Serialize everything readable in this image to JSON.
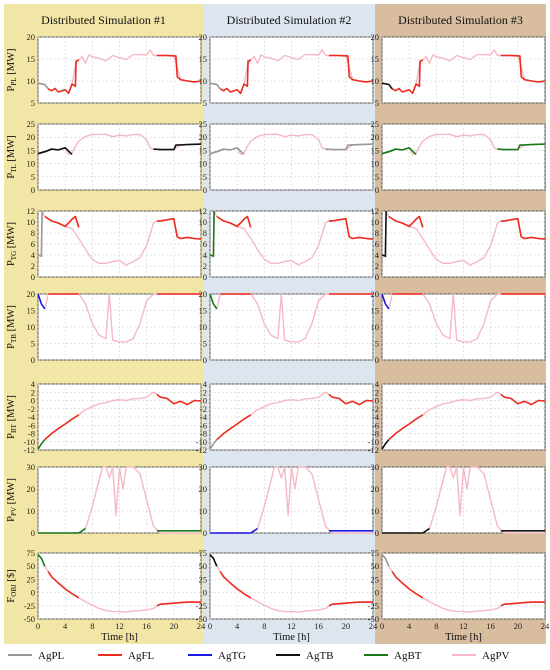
{
  "columns": [
    {
      "title": "Distributed Simulation #1",
      "bg": "#f2e6a6"
    },
    {
      "title": "Distributed Simulation #2",
      "bg": "#dde6ef"
    },
    {
      "title": "Distributed Simulation #3",
      "bg": "#d8bd9f"
    }
  ],
  "xlabel": "Time [h]",
  "xticks": [
    0,
    4,
    8,
    12,
    16,
    20,
    24
  ],
  "legend": [
    {
      "label": "AgPL",
      "color": "#999999"
    },
    {
      "label": "AgFL",
      "color": "#ee2b1e"
    },
    {
      "label": "AgTG",
      "color": "#1a1ae6"
    },
    {
      "label": "AgTB",
      "color": "#111111"
    },
    {
      "label": "AgBT",
      "color": "#1a7a1a"
    },
    {
      "label": "AgPV",
      "color": "#f5b8c4"
    }
  ],
  "chart_data": {
    "type": "line",
    "rows": [
      {
        "ylabel": "P_PL [MW]",
        "ylim": [
          5,
          20
        ],
        "yticks": [
          5,
          10,
          15,
          20
        ],
        "series": [
          {
            "name": "AgPV",
            "x": [
              0,
              1,
              1.5,
              2,
              2.5,
              3,
              4,
              4.5,
              5,
              5.5,
              6,
              6.5,
              7,
              7.5,
              8,
              9,
              10,
              11,
              12,
              13,
              14,
              15,
              16,
              16.5,
              17,
              18,
              19,
              20,
              21,
              22,
              23,
              24
            ],
            "y": [
              9.5,
              9.2,
              8.2,
              7.8,
              8.3,
              7.5,
              8.0,
              7.2,
              9.3,
              13.5,
              14.8,
              15.6,
              14.0,
              15.9,
              15.5,
              15.2,
              14.6,
              15.8,
              15.3,
              14.9,
              16.0,
              16.0,
              15.9,
              17.1,
              15.8,
              15.8,
              15.8,
              15.8,
              10.3,
              10.0,
              9.8,
              10.0
            ]
          },
          {
            "name": "AgFL",
            "x": [
              1.5,
              2,
              2.5,
              3,
              4,
              4.5,
              5,
              5.5,
              5.6,
              6
            ],
            "y": [
              8.2,
              7.8,
              8.3,
              7.5,
              8.0,
              7.2,
              9.3,
              8.8,
              14.5,
              14.8
            ]
          },
          {
            "name": "AgFL",
            "x": [
              17.5,
              18,
              19,
              20,
              20.3,
              20.5,
              21,
              22,
              23,
              24
            ],
            "y": [
              15.8,
              15.8,
              15.8,
              15.7,
              15.7,
              11.0,
              10.3,
              10.0,
              9.8,
              10.0
            ]
          }
        ]
      },
      {
        "ylabel": "P_TL [MW]",
        "ylim": [
          0,
          25
        ],
        "yticks": [
          0,
          5,
          10,
          15,
          20,
          25
        ],
        "series": [
          {
            "name": "AgPV",
            "x": [
              0,
              1,
              2,
              3,
              4,
              4.5,
              5,
              5.5,
              6,
              7,
              8,
              9,
              10,
              11,
              12,
              13,
              14,
              15,
              16,
              16.5,
              17,
              18,
              19,
              20,
              21,
              22,
              23,
              24
            ],
            "y": [
              13.8,
              14.5,
              15.5,
              15.2,
              16.0,
              13.5,
              14.0,
              16.5,
              18.5,
              20.3,
              21.0,
              21.1,
              21.1,
              20.2,
              20.8,
              20.5,
              21.0,
              21.0,
              19.0,
              16.0,
              15.5,
              15.3,
              15.3,
              15.3,
              17.1,
              17.2,
              17.3,
              17.4
            ]
          },
          {
            "name": "AgTB",
            "x": [
              0,
              1,
              2,
              3,
              4,
              5
            ],
            "y": [
              13.8,
              14.5,
              15.5,
              15.2,
              16.0,
              13.5
            ]
          },
          {
            "name": "AgTB",
            "x": [
              17,
              18,
              19,
              20,
              20.3,
              21,
              22,
              23,
              24
            ],
            "y": [
              15.5,
              15.3,
              15.3,
              15.3,
              17.0,
              17.1,
              17.2,
              17.3,
              17.4
            ]
          }
        ]
      },
      {
        "ylabel": "P_TG [MW]",
        "ylim": [
          0,
          12
        ],
        "yticks": [
          0,
          2,
          4,
          6,
          8,
          10,
          12
        ],
        "series": [
          {
            "name": "AgPV",
            "x": [
              0,
              0.5,
              0.6,
              1,
              2,
              3,
              4,
              5,
              6,
              7,
              8,
              9,
              10,
              11,
              12,
              13,
              14,
              15,
              16,
              17,
              17.5,
              18,
              19,
              20,
              20.5,
              21,
              22,
              23,
              24
            ],
            "y": [
              4.0,
              3.8,
              12.0,
              11.0,
              10.2,
              9.8,
              9.2,
              8.8,
              7.0,
              5.0,
              3.2,
              2.5,
              2.5,
              2.8,
              3.0,
              2.2,
              2.8,
              3.5,
              5.8,
              9.8,
              10.2,
              10.2,
              10.4,
              10.6,
              7.3,
              7.0,
              7.2,
              7.0,
              6.9
            ]
          },
          {
            "name": "AgFL",
            "x": [
              1,
              2,
              3,
              4,
              5,
              5.5,
              6
            ],
            "y": [
              11.0,
              10.2,
              9.8,
              9.2,
              10.5,
              11.0,
              9.0
            ]
          },
          {
            "name": "AgFL",
            "x": [
              17.5,
              18,
              19,
              20,
              20.5,
              21,
              22,
              23,
              24
            ],
            "y": [
              10.2,
              10.2,
              10.4,
              10.6,
              7.3,
              7.0,
              7.2,
              7.0,
              6.9
            ]
          }
        ]
      },
      {
        "ylabel": "P_TB [MW]",
        "ylim": [
          0,
          20
        ],
        "yticks": [
          0,
          5,
          10,
          15,
          20
        ],
        "series": [
          {
            "name": "AgPV",
            "x": [
              0,
              0.5,
              1,
              1.5,
              2,
              6,
              7,
              8,
              9,
              10,
              10.5,
              11,
              12,
              13,
              14,
              15,
              16,
              17,
              17.5,
              18,
              20,
              22,
              24
            ],
            "y": [
              20.0,
              17.0,
              15.5,
              20.0,
              20.0,
              20.0,
              17.0,
              11.0,
              7.5,
              6.5,
              20.0,
              6.0,
              5.5,
              5.5,
              6.5,
              11.0,
              18.0,
              20.0,
              20.0,
              20.0,
              20.0,
              20.0,
              20.0
            ]
          },
          {
            "name": "AgFL",
            "x": [
              1.5,
              2,
              3,
              4,
              5,
              6
            ],
            "y": [
              20.0,
              20.0,
              20.0,
              20.0,
              20.0,
              20.0
            ]
          },
          {
            "name": "AgFL",
            "x": [
              17.5,
              18,
              20,
              22,
              24
            ],
            "y": [
              20.0,
              20.0,
              20.0,
              20.0,
              20.0
            ]
          }
        ]
      },
      {
        "ylabel": "P_BT [MW]",
        "ylim": [
          -12,
          4
        ],
        "yticks": [
          -12,
          -10,
          -8,
          -6,
          -4,
          -2,
          0,
          2,
          4
        ],
        "series": [
          {
            "name": "AgPV",
            "x": [
              0,
              0.5,
              1,
              2,
              3,
              4,
              5,
              6,
              7,
              8,
              9,
              10,
              11,
              12,
              13,
              14,
              15,
              16,
              17,
              17.5,
              18,
              19,
              20,
              21,
              22,
              23,
              24
            ],
            "y": [
              -11.8,
              -10.5,
              -9.5,
              -8.0,
              -6.8,
              -5.7,
              -4.5,
              -3.5,
              -2.2,
              -1.5,
              -0.8,
              -0.5,
              0.0,
              0.2,
              0.0,
              0.4,
              0.5,
              0.8,
              2.0,
              1.5,
              0.8,
              0.5,
              -0.8,
              -0.2,
              -1.0,
              0.0,
              -0.1
            ]
          },
          {
            "name": "AgFL",
            "x": [
              1,
              2,
              3,
              4,
              5,
              6
            ],
            "y": [
              -9.5,
              -8.0,
              -6.8,
              -5.7,
              -4.5,
              -3.5
            ]
          },
          {
            "name": "AgFL",
            "x": [
              17.5,
              18,
              19,
              20,
              21,
              22,
              23,
              24
            ],
            "y": [
              1.5,
              0.8,
              0.5,
              -0.8,
              -0.2,
              -1.0,
              0.0,
              -0.1
            ]
          }
        ]
      },
      {
        "ylabel": "P_PV [MW]",
        "ylim": [
          0,
          30
        ],
        "yticks": [
          0,
          10,
          20,
          30
        ],
        "series": [
          {
            "name": "AgPV",
            "x": [
              0,
              6,
              7,
              8,
              9,
              9.5,
              10,
              10.5,
              11,
              11.5,
              12,
              12.5,
              13,
              14,
              15,
              16,
              17,
              18,
              24
            ],
            "y": [
              0,
              0,
              2,
              12,
              24,
              30,
              30,
              25,
              30,
              8,
              30,
              20,
              30,
              30,
              27,
              15,
              3,
              0,
              0
            ]
          },
          {
            "name": "AgTB",
            "x": [
              17.5,
              18,
              20,
              22,
              24
            ],
            "y": [
              1,
              1,
              1,
              1,
              1
            ]
          }
        ]
      },
      {
        "ylabel": "F_OBJ [$]",
        "ylim": [
          -50,
          75
        ],
        "yticks": [
          -50,
          -25,
          0,
          25,
          50,
          75
        ],
        "series": [
          {
            "name": "AgPV",
            "x": [
              0,
              0.5,
              1,
              1.5,
              2,
              3,
              4,
              5,
              6,
              7,
              8,
              9,
              10,
              11,
              12,
              13,
              14,
              15,
              16,
              17,
              18,
              19,
              20,
              21,
              22,
              23,
              24
            ],
            "y": [
              72,
              65,
              50,
              40,
              30,
              18,
              7,
              -2,
              -10,
              -17,
              -24,
              -30,
              -34,
              -36,
              -36,
              -37,
              -35,
              -34,
              -33,
              -30,
              -22,
              -21,
              -20,
              -19,
              -18,
              -18,
              -18
            ]
          },
          {
            "name": "AgFL",
            "x": [
              1.5,
              2,
              3,
              4,
              5,
              6
            ],
            "y": [
              40,
              30,
              18,
              7,
              -2,
              -10
            ]
          },
          {
            "name": "AgFL",
            "x": [
              17.5,
              18,
              19,
              20,
              21,
              22,
              23,
              24
            ],
            "y": [
              -25,
              -22,
              -21,
              -20,
              -19,
              -18,
              -18,
              -18
            ]
          }
        ]
      }
    ]
  },
  "highlights": [
    [
      [
        "AgPL",
        "AgTG"
      ],
      [
        "AgTB"
      ],
      [
        "AgPL"
      ],
      [
        "AgTG"
      ],
      [
        "AgBT"
      ],
      [
        "AgBT"
      ],
      [
        "AgBT"
      ]
    ],
    [
      [
        "AgPL"
      ],
      [
        "AgPL"
      ],
      [
        "AgBT"
      ],
      [
        "AgBT"
      ],
      [
        "AgPL"
      ],
      [
        "AgTG"
      ],
      [
        "AgTB"
      ]
    ],
    [
      [
        "AgTB"
      ],
      [
        "AgBT"
      ],
      [
        "AgTB"
      ],
      [
        "AgTG"
      ],
      [
        "AgTB"
      ],
      [
        "AgTB"
      ],
      [
        "AgPL"
      ]
    ]
  ]
}
